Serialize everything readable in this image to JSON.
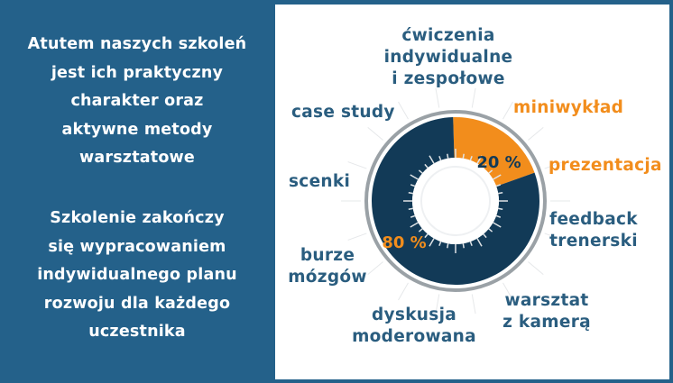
{
  "left": {
    "paragraph1": [
      "Atutem naszych szkoleń",
      "jest ich praktyczny",
      "charakter oraz",
      "aktywne metody",
      "warsztatowe"
    ],
    "paragraph2": [
      "Szkolenie zakończy",
      "się wypracowaniem",
      "indywidualnego planu",
      "rozwoju dla każdego",
      "uczestnika"
    ]
  },
  "methods": {
    "cwiczenia": [
      "ćwiczenia",
      "indywidualne",
      "i zespołowe"
    ],
    "case_study": "case study",
    "miniwyklad": "miniwykład",
    "scenki": "scenki",
    "prezentacja": "prezentacja",
    "feedback": [
      "feedback",
      "trenerski"
    ],
    "burze": [
      "burze",
      "mózgów"
    ],
    "warsztat": [
      "warsztat",
      "z kamerą"
    ],
    "dyskusja": [
      "dyskusja",
      "moderowana"
    ]
  },
  "chart_data": {
    "type": "pie",
    "series": [
      {
        "values": [
          20,
          80
        ]
      }
    ],
    "labels": [
      "20 %",
      "80 %"
    ]
  },
  "colors": {
    "background": "#24618a",
    "panel": "#ffffff",
    "navy": "#123a57",
    "orange": "#f28d1c",
    "label_blue": "#2a5d7f",
    "ring_gray": "#9aa1a6"
  }
}
